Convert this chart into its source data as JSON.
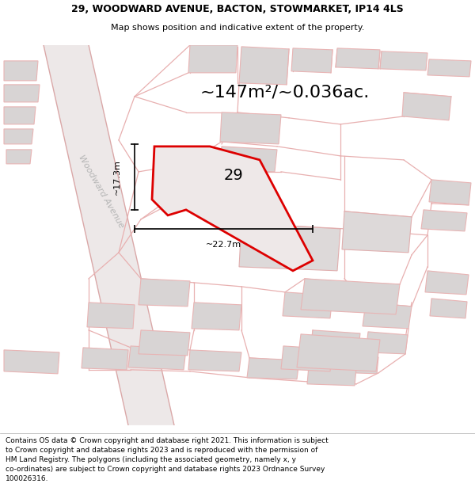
{
  "title_line1": "29, WOODWARD AVENUE, BACTON, STOWMARKET, IP14 4LS",
  "title_line2": "Map shows position and indicative extent of the property.",
  "area_text": "~147m²/~0.036ac.",
  "label_number": "29",
  "dim_height": "~17.3m",
  "dim_width": "~22.7m",
  "street_label": "Woodward Avenue",
  "footer_line1": "Contains OS data © Crown copyright and database right 2021. This information is subject",
  "footer_line2": "to Crown copyright and database rights 2023 and is reproduced with the permission of",
  "footer_line3": "HM Land Registry. The polygons (including the associated geometry, namely x, y",
  "footer_line4": "co-ordinates) are subject to Crown copyright and database rights 2023 Ordnance Survey",
  "footer_line5": "100026316.",
  "bg_color": "#f7f5f5",
  "plot_fill": "#e8e4e4",
  "plot_outline": "#dd0000",
  "building_fill": "#d8d4d4",
  "building_outline": "#e8b4b4",
  "road_line_color": "#e8b0b0",
  "title_fontsize": 9.0,
  "subtitle_fontsize": 8.0,
  "area_fontsize": 16,
  "dim_fontsize": 8,
  "number_fontsize": 14,
  "street_fontsize": 8,
  "footer_fontsize": 6.5
}
